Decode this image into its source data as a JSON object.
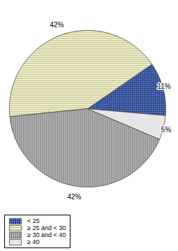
{
  "chart_data": {
    "type": "pie",
    "categories": [
      "< 25",
      "≥ 25 and < 30",
      "≥ 30 and < 40",
      "≥ 40"
    ],
    "values": [
      11,
      42,
      42,
      5
    ],
    "value_labels": [
      "11%",
      "42%",
      "42%",
      "5%"
    ],
    "colors": [
      "#1f3f8f",
      "#fffcc4",
      "#b8b8b8",
      "#e6e6e6"
    ],
    "data_labels": true,
    "legend": "bottom-left"
  }
}
